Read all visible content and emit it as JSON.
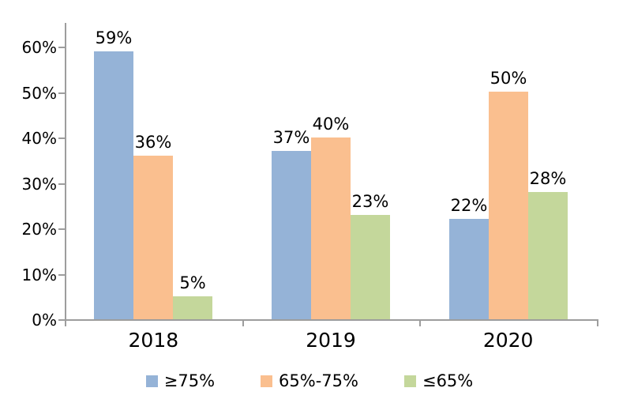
{
  "chart_data": {
    "type": "bar",
    "title": "",
    "xlabel": "",
    "ylabel": "",
    "categories": [
      "2018",
      "2019",
      "2020"
    ],
    "series": [
      {
        "name": "≥75%",
        "color": "#95B3D7",
        "values": [
          59,
          37,
          22
        ]
      },
      {
        "name": "65%-75%",
        "color": "#FABF8F",
        "values": [
          36,
          40,
          50
        ]
      },
      {
        "name": "≤65%",
        "color": "#C4D79B",
        "values": [
          5,
          23,
          28
        ]
      }
    ],
    "data_labels": true,
    "value_suffix": "%",
    "yticks": [
      0,
      10,
      20,
      30,
      40,
      50,
      60
    ],
    "ytick_suffix": "%",
    "ylim": [
      0,
      65
    ],
    "grid": false,
    "legend_position": "bottom",
    "axis_color": "#9d9d9d",
    "text_color": "#000000",
    "background": "#ffffff"
  }
}
